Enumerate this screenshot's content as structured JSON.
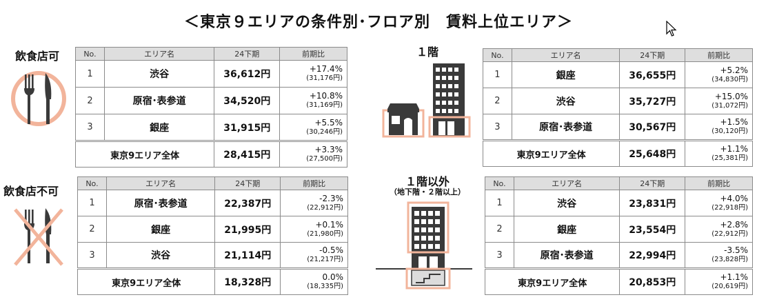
{
  "title": "＜東京９エリアの条件別･フロア別　賃料上位エリア＞",
  "labels": {
    "food_ok": "飲食店可",
    "food_ng": "飲食店不可",
    "floor1": "１階",
    "floor_other": "１階以外",
    "floor_other_sub": "（地下階・２階以上）"
  },
  "headers": {
    "no": "No.",
    "area": "エリア名",
    "period": "24下期",
    "cmp": "前期比"
  },
  "tables": {
    "food_ok": {
      "rows": [
        {
          "no": "1",
          "area": "渋谷",
          "rent": "36,612円",
          "pct": "+17.4%",
          "prev": "(31,176円)"
        },
        {
          "no": "2",
          "area": "原宿･表参道",
          "rent": "34,520円",
          "pct": "+10.8%",
          "prev": "(31,169円)"
        },
        {
          "no": "3",
          "area": "銀座",
          "rent": "31,915円",
          "pct": "+5.5%",
          "prev": "(30,246円)"
        }
      ],
      "total": {
        "area": "東京9エリア全体",
        "rent": "28,415円",
        "pct": "+3.3%",
        "prev": "(27,500円)"
      }
    },
    "food_ng": {
      "rows": [
        {
          "no": "1",
          "area": "原宿･表参道",
          "rent": "22,387円",
          "pct": "-2.3%",
          "prev": "(22,912円)"
        },
        {
          "no": "2",
          "area": "銀座",
          "rent": "21,995円",
          "pct": "+0.1%",
          "prev": "(21,980円)"
        },
        {
          "no": "3",
          "area": "渋谷",
          "rent": "21,114円",
          "pct": "-0.5%",
          "prev": "(21,217円)"
        }
      ],
      "total": {
        "area": "東京9エリア全体",
        "rent": "18,328円",
        "pct": "0.0%",
        "prev": "(18,335円)"
      }
    },
    "floor1": {
      "rows": [
        {
          "no": "1",
          "area": "銀座",
          "rent": "36,655円",
          "pct": "+5.2%",
          "prev": "(34,830円)"
        },
        {
          "no": "2",
          "area": "渋谷",
          "rent": "35,727円",
          "pct": "+15.0%",
          "prev": "(31,072円)"
        },
        {
          "no": "3",
          "area": "原宿･表参道",
          "rent": "30,567円",
          "pct": "+1.5%",
          "prev": "(30,120円)"
        }
      ],
      "total": {
        "area": "東京9エリア全体",
        "rent": "25,648円",
        "pct": "+1.1%",
        "prev": "(25,381円)"
      }
    },
    "floor_other": {
      "rows": [
        {
          "no": "1",
          "area": "渋谷",
          "rent": "23,831円",
          "pct": "+4.0%",
          "prev": "(22,918円)"
        },
        {
          "no": "2",
          "area": "銀座",
          "rent": "23,554円",
          "pct": "+2.8%",
          "prev": "(22,912円)"
        },
        {
          "no": "3",
          "area": "原宿･表参道",
          "rent": "22,994円",
          "pct": "-3.5%",
          "prev": "(23,828円)"
        }
      ],
      "total": {
        "area": "東京9エリア全体",
        "rent": "20,853円",
        "pct": "+1.1%",
        "prev": "(20,619円)"
      }
    }
  },
  "colors": {
    "accent": "#f2b49b",
    "icon": "#3a3a3a",
    "header_bg": "#dedede",
    "border": "#8a8a8a"
  }
}
